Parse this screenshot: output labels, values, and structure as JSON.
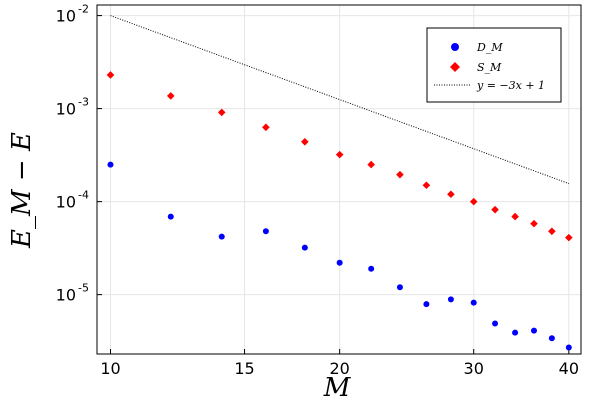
{
  "chart_data": {
    "type": "scatter",
    "xscale": "log",
    "yscale": "log",
    "xlim": [
      9.6,
      41.5
    ],
    "ylim": [
      2.3e-06,
      0.013
    ],
    "xticks": [
      {
        "value": 10,
        "label": "10"
      },
      {
        "value": 15,
        "label": "15"
      },
      {
        "value": 20,
        "label": "20"
      },
      {
        "value": 30,
        "label": "30"
      },
      {
        "value": 40,
        "label": "40"
      }
    ],
    "yticks": [
      {
        "value": 0.01,
        "base": "10",
        "exp": "-2"
      },
      {
        "value": 0.001,
        "base": "10",
        "exp": "-3"
      },
      {
        "value": 0.0001,
        "base": "10",
        "exp": "-4"
      },
      {
        "value": 1e-05,
        "base": "10",
        "exp": "-5"
      }
    ],
    "xlabel": "M",
    "ylabel": "E_M − E",
    "grid": true,
    "legend_position": "top-right",
    "series": [
      {
        "name": "D_M",
        "marker": "circle",
        "color": "#0000ff",
        "x": [
          10,
          12,
          14,
          16,
          18,
          20,
          22,
          24,
          26,
          28,
          30,
          32,
          34,
          36,
          38,
          40
        ],
        "y": [
          0.00025,
          6.9e-05,
          4.2e-05,
          4.8e-05,
          3.2e-05,
          2.2e-05,
          1.9e-05,
          1.2e-05,
          7.9e-06,
          8.9e-06,
          8.2e-06,
          4.9e-06,
          3.9e-06,
          4.1e-06,
          3.4e-06,
          2.7e-06
        ]
      },
      {
        "name": "S_M",
        "marker": "diamond",
        "color": "#ff0000",
        "x": [
          10,
          12,
          14,
          16,
          18,
          20,
          22,
          24,
          26,
          28,
          30,
          32,
          34,
          36,
          38,
          40
        ],
        "y": [
          0.0023,
          0.00137,
          0.00091,
          0.00063,
          0.00044,
          0.00032,
          0.00025,
          0.000195,
          0.00015,
          0.00012,
          0.0001,
          8.2e-05,
          6.9e-05,
          5.8e-05,
          4.8e-05,
          4.1e-05
        ]
      },
      {
        "name": "y = −3x + 1",
        "marker": "line",
        "style": "dotted",
        "color": "#000000",
        "x": [
          10,
          40
        ],
        "y": [
          0.01,
          0.00015625
        ]
      }
    ]
  }
}
